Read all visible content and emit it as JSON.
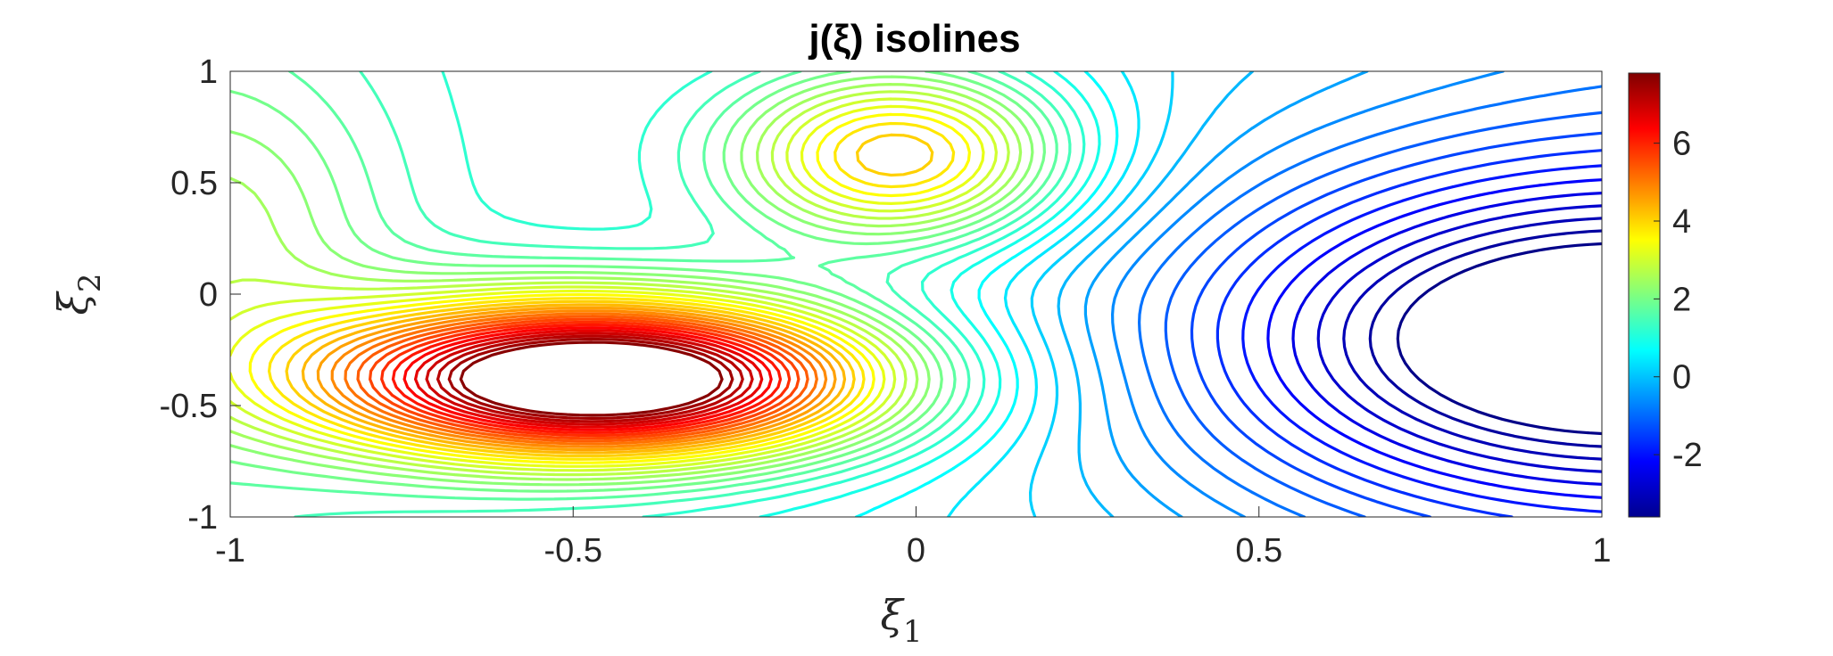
{
  "chart_data": {
    "type": "contour",
    "title": "j(ξ) isolines",
    "xlabel": "ξ",
    "xlabel_sub": "1",
    "ylabel": "ξ",
    "ylabel_sub": "2",
    "xlim": [
      -1,
      1
    ],
    "ylim": [
      -1,
      1
    ],
    "xticks": [
      "-1",
      "-0.5",
      "0",
      "0.5",
      "1"
    ],
    "yticks": [
      "1",
      "0.5",
      "0",
      "-0.5",
      "-1"
    ],
    "colorbar": {
      "colormap": "jet",
      "range": [
        -3.6,
        7.8
      ],
      "ticks": [
        "6",
        "4",
        "2",
        "0",
        "-2"
      ]
    },
    "regions": [
      {
        "name": "lower-left maximum",
        "center": [
          -0.45,
          -0.38
        ],
        "max_value": 7.8
      },
      {
        "name": "upper-middle plateau",
        "center": [
          -0.05,
          0.6
        ],
        "value": 3.5
      },
      {
        "name": "right minimum",
        "center": [
          0.97,
          -0.2
        ],
        "min_value": -3.6
      }
    ],
    "grid": false
  }
}
